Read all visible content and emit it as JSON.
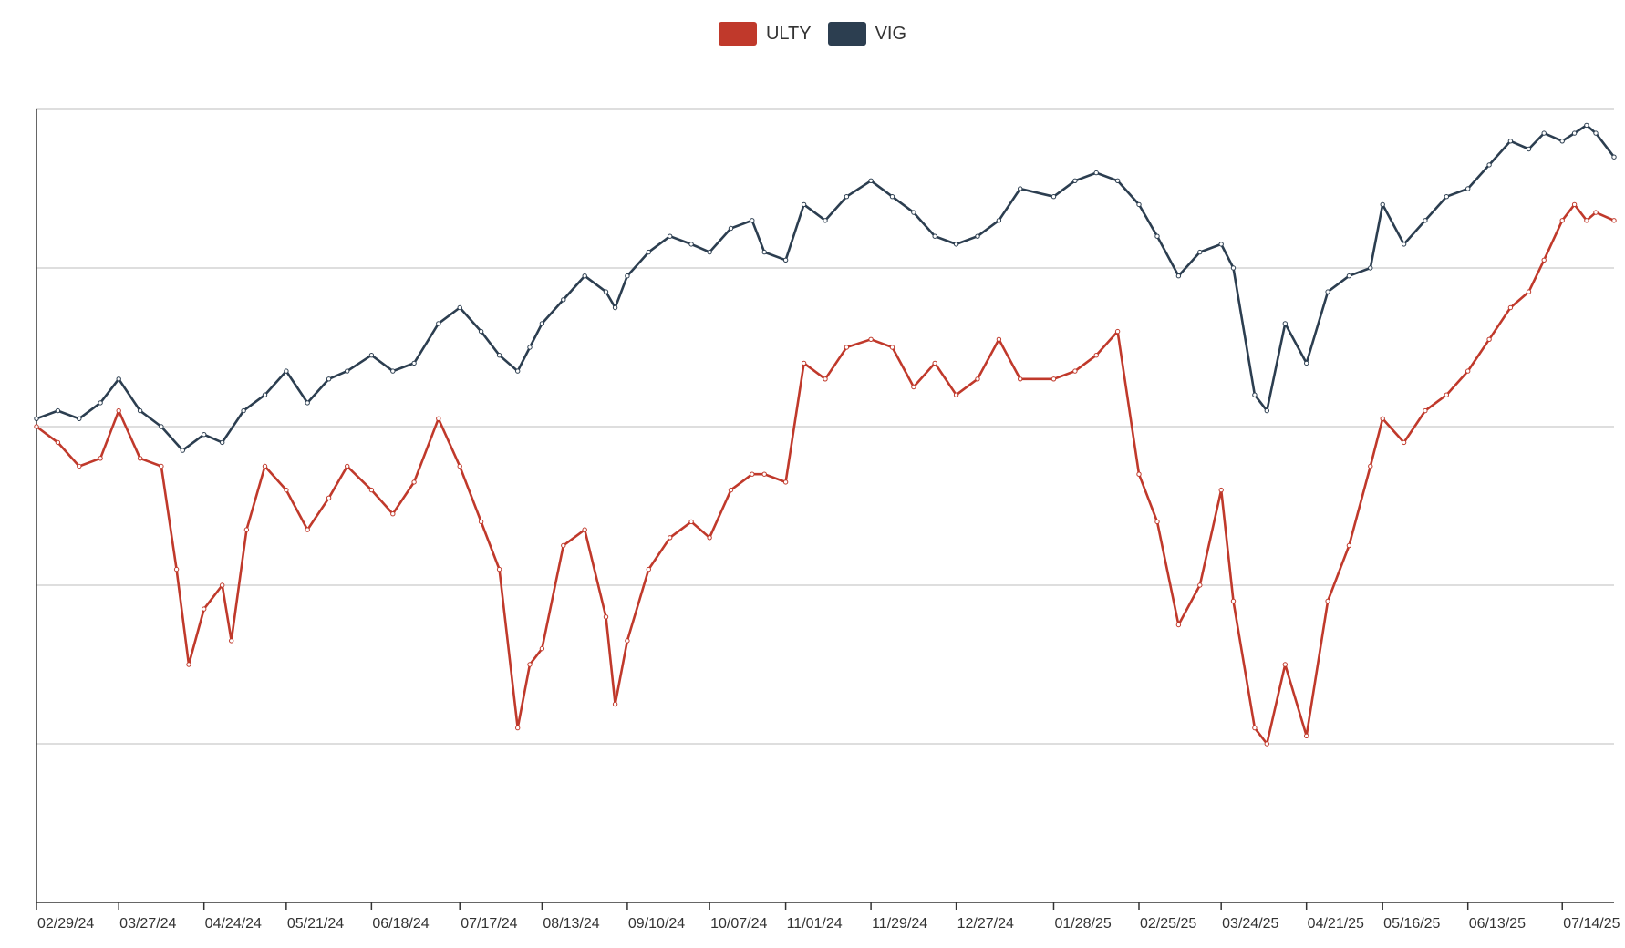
{
  "chart_data": {
    "type": "line",
    "title": "",
    "xlabel": "",
    "ylabel": "",
    "ylim": [
      0,
      100
    ],
    "x_ticks": [
      "02/29/24",
      "03/27/24",
      "04/24/24",
      "05/21/24",
      "06/18/24",
      "07/17/24",
      "08/13/24",
      "09/10/24",
      "10/07/24",
      "11/01/24",
      "11/29/24",
      "12/27/24",
      "01/28/25",
      "02/25/25",
      "03/24/25",
      "04/21/25",
      "05/16/25",
      "06/13/25",
      "07/14/25"
    ],
    "legend_position": "top-center",
    "grid": "horizontal",
    "series": [
      {
        "name": "ULTY",
        "color": "#c0392b",
        "points": [
          [
            "02/29/24",
            60
          ],
          [
            "03/07/24",
            58
          ],
          [
            "03/14/24",
            55
          ],
          [
            "03/21/24",
            56
          ],
          [
            "03/27/24",
            62
          ],
          [
            "04/03/24",
            56
          ],
          [
            "04/10/24",
            55
          ],
          [
            "04/15/24",
            42
          ],
          [
            "04/19/24",
            30
          ],
          [
            "04/24/24",
            37
          ],
          [
            "04/30/24",
            40
          ],
          [
            "05/03/24",
            33
          ],
          [
            "05/08/24",
            47
          ],
          [
            "05/14/24",
            55
          ],
          [
            "05/21/24",
            52
          ],
          [
            "05/28/24",
            47
          ],
          [
            "06/04/24",
            51
          ],
          [
            "06/10/24",
            55
          ],
          [
            "06/18/24",
            52
          ],
          [
            "06/25/24",
            49
          ],
          [
            "07/02/24",
            53
          ],
          [
            "07/10/24",
            61
          ],
          [
            "07/17/24",
            55
          ],
          [
            "07/24/24",
            48
          ],
          [
            "07/30/24",
            42
          ],
          [
            "08/05/24",
            22
          ],
          [
            "08/09/24",
            30
          ],
          [
            "08/13/24",
            32
          ],
          [
            "08/20/24",
            45
          ],
          [
            "08/27/24",
            47
          ],
          [
            "09/03/24",
            36
          ],
          [
            "09/06/24",
            25
          ],
          [
            "09/10/24",
            33
          ],
          [
            "09/17/24",
            42
          ],
          [
            "09/24/24",
            46
          ],
          [
            "10/01/24",
            48
          ],
          [
            "10/07/24",
            46
          ],
          [
            "10/14/24",
            52
          ],
          [
            "10/21/24",
            54
          ],
          [
            "10/25/24",
            54
          ],
          [
            "11/01/24",
            53
          ],
          [
            "11/07/24",
            68
          ],
          [
            "11/14/24",
            66
          ],
          [
            "11/21/24",
            70
          ],
          [
            "11/29/24",
            71
          ],
          [
            "12/06/24",
            70
          ],
          [
            "12/13/24",
            65
          ],
          [
            "12/20/24",
            68
          ],
          [
            "12/27/24",
            64
          ],
          [
            "01/03/25",
            66
          ],
          [
            "01/10/25",
            71
          ],
          [
            "01/17/25",
            66
          ],
          [
            "01/28/25",
            66
          ],
          [
            "02/04/25",
            67
          ],
          [
            "02/11/25",
            69
          ],
          [
            "02/18/25",
            72
          ],
          [
            "02/25/25",
            54
          ],
          [
            "03/03/25",
            48
          ],
          [
            "03/10/25",
            35
          ],
          [
            "03/17/25",
            40
          ],
          [
            "03/24/25",
            52
          ],
          [
            "03/28/25",
            38
          ],
          [
            "04/04/25",
            22
          ],
          [
            "04/08/25",
            20
          ],
          [
            "04/14/25",
            30
          ],
          [
            "04/21/25",
            21
          ],
          [
            "04/28/25",
            38
          ],
          [
            "05/05/25",
            45
          ],
          [
            "05/12/25",
            55
          ],
          [
            "05/16/25",
            61
          ],
          [
            "05/23/25",
            58
          ],
          [
            "05/30/25",
            62
          ],
          [
            "06/06/25",
            64
          ],
          [
            "06/13/25",
            67
          ],
          [
            "06/20/25",
            71
          ],
          [
            "06/27/25",
            75
          ],
          [
            "07/03/25",
            77
          ],
          [
            "07/08/25",
            81
          ],
          [
            "07/14/25",
            86
          ],
          [
            "07/18/25",
            88
          ],
          [
            "07/22/25",
            86
          ],
          [
            "07/25/25",
            87
          ],
          [
            "07/31/25",
            86
          ]
        ]
      },
      {
        "name": "VIG",
        "color": "#2c3e50",
        "points": [
          [
            "02/29/24",
            61
          ],
          [
            "03/07/24",
            62
          ],
          [
            "03/14/24",
            61
          ],
          [
            "03/21/24",
            63
          ],
          [
            "03/27/24",
            66
          ],
          [
            "04/03/24",
            62
          ],
          [
            "04/10/24",
            60
          ],
          [
            "04/17/24",
            57
          ],
          [
            "04/24/24",
            59
          ],
          [
            "04/30/24",
            58
          ],
          [
            "05/07/24",
            62
          ],
          [
            "05/14/24",
            64
          ],
          [
            "05/21/24",
            67
          ],
          [
            "05/28/24",
            63
          ],
          [
            "06/04/24",
            66
          ],
          [
            "06/10/24",
            67
          ],
          [
            "06/18/24",
            69
          ],
          [
            "06/25/24",
            67
          ],
          [
            "07/02/24",
            68
          ],
          [
            "07/10/24",
            73
          ],
          [
            "07/17/24",
            75
          ],
          [
            "07/24/24",
            72
          ],
          [
            "07/30/24",
            69
          ],
          [
            "08/05/24",
            67
          ],
          [
            "08/09/24",
            70
          ],
          [
            "08/13/24",
            73
          ],
          [
            "08/20/24",
            76
          ],
          [
            "08/27/24",
            79
          ],
          [
            "09/03/24",
            77
          ],
          [
            "09/06/24",
            75
          ],
          [
            "09/10/24",
            79
          ],
          [
            "09/17/24",
            82
          ],
          [
            "09/24/24",
            84
          ],
          [
            "10/01/24",
            83
          ],
          [
            "10/07/24",
            82
          ],
          [
            "10/14/24",
            85
          ],
          [
            "10/21/24",
            86
          ],
          [
            "10/25/24",
            82
          ],
          [
            "11/01/24",
            81
          ],
          [
            "11/07/24",
            88
          ],
          [
            "11/14/24",
            86
          ],
          [
            "11/21/24",
            89
          ],
          [
            "11/29/24",
            91
          ],
          [
            "12/06/24",
            89
          ],
          [
            "12/13/24",
            87
          ],
          [
            "12/20/24",
            84
          ],
          [
            "12/27/24",
            83
          ],
          [
            "01/03/25",
            84
          ],
          [
            "01/10/25",
            86
          ],
          [
            "01/17/25",
            90
          ],
          [
            "01/28/25",
            89
          ],
          [
            "02/04/25",
            91
          ],
          [
            "02/11/25",
            92
          ],
          [
            "02/18/25",
            91
          ],
          [
            "02/25/25",
            88
          ],
          [
            "03/03/25",
            84
          ],
          [
            "03/10/25",
            79
          ],
          [
            "03/17/25",
            82
          ],
          [
            "03/24/25",
            83
          ],
          [
            "03/28/25",
            80
          ],
          [
            "04/04/25",
            64
          ],
          [
            "04/08/25",
            62
          ],
          [
            "04/14/25",
            73
          ],
          [
            "04/21/25",
            68
          ],
          [
            "04/28/25",
            77
          ],
          [
            "05/05/25",
            79
          ],
          [
            "05/12/25",
            80
          ],
          [
            "05/16/25",
            88
          ],
          [
            "05/23/25",
            83
          ],
          [
            "05/30/25",
            86
          ],
          [
            "06/06/25",
            89
          ],
          [
            "06/13/25",
            90
          ],
          [
            "06/20/25",
            93
          ],
          [
            "06/27/25",
            96
          ],
          [
            "07/03/25",
            95
          ],
          [
            "07/08/25",
            97
          ],
          [
            "07/14/25",
            96
          ],
          [
            "07/18/25",
            97
          ],
          [
            "07/22/25",
            98
          ],
          [
            "07/25/25",
            97
          ],
          [
            "07/31/25",
            94
          ]
        ]
      }
    ]
  }
}
